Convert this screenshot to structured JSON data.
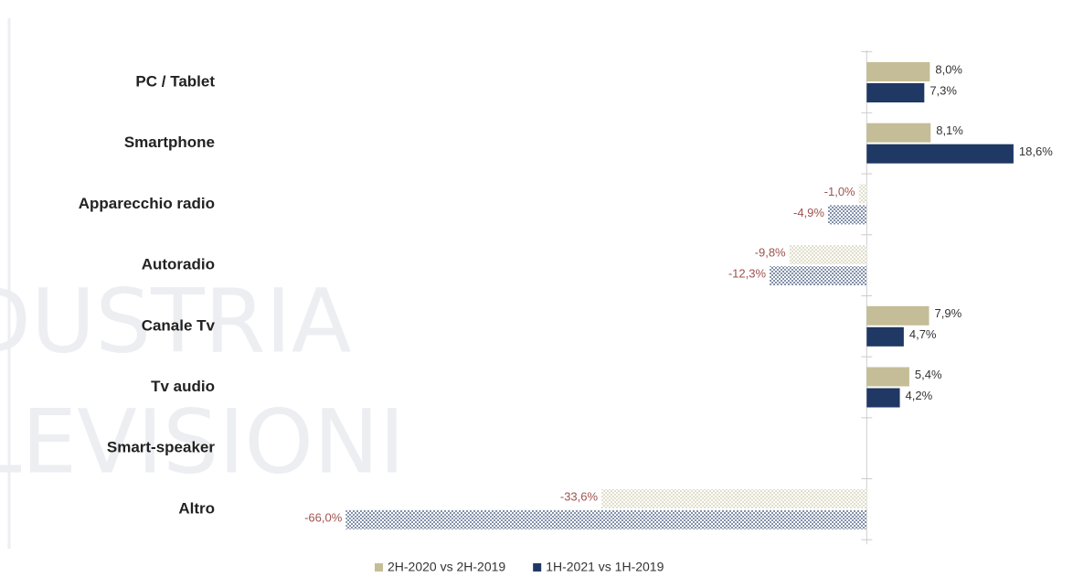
{
  "watermark": [
    "DUSTRIA",
    "LEVISIONI"
  ],
  "chart_data": {
    "type": "bar",
    "orientation": "horizontal",
    "categories": [
      "PC / Tablet",
      "Smartphone",
      "Apparecchio radio",
      "Autoradio",
      "Canale Tv",
      "Tv audio",
      "Smart-speaker",
      "Altro"
    ],
    "series": [
      {
        "name": "2H-2020 vs 2H-2019",
        "color": "#c4bd97",
        "values": [
          8.0,
          8.1,
          -1.0,
          -9.8,
          7.9,
          5.4,
          null,
          -33.6
        ],
        "value_labels": [
          "8,0%",
          "8,1%",
          "-1,0%",
          "-9,8%",
          "7,9%",
          "5,4%",
          null,
          "-33,6%"
        ]
      },
      {
        "name": "1H-2021 vs 1H-2019",
        "color": "#1f3864",
        "values": [
          7.3,
          18.6,
          -4.9,
          -12.3,
          4.7,
          4.2,
          null,
          -66.0
        ],
        "value_labels": [
          "7,3%",
          "18,6%",
          "-4,9%",
          "-12,3%",
          "4,7%",
          "4,2%",
          null,
          "-66,0%"
        ]
      }
    ],
    "xlim": [
      -68,
      20
    ],
    "negative_label_color": "#a0524f"
  }
}
